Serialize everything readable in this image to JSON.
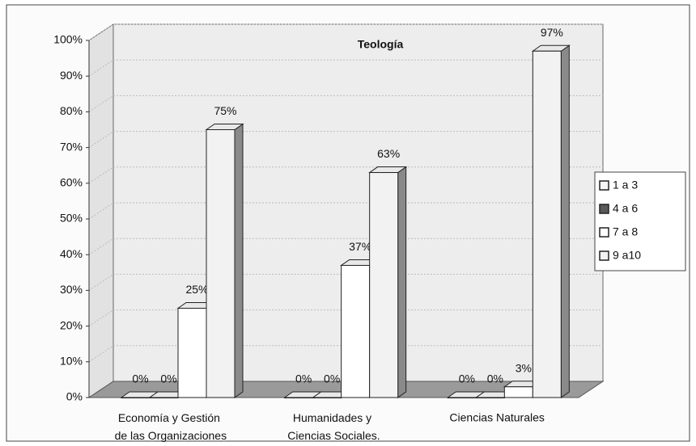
{
  "chart_data": {
    "type": "bar3d",
    "title": "Teología",
    "categories": [
      "Economía y Gestión de las Organizaciones",
      "Humanidades y Ciencias Sociales.",
      "Ciencias Naturales"
    ],
    "series": [
      {
        "name": "1 a 3",
        "color": "#f6f6f6",
        "values": [
          0,
          0,
          0
        ],
        "value_labels": [
          "0%",
          "0%",
          "0%"
        ]
      },
      {
        "name": "4 a 6",
        "color": "#5a5a5a",
        "values": [
          0,
          0,
          0
        ],
        "value_labels": [
          "0%",
          "0%",
          "0%"
        ]
      },
      {
        "name": "7 a 8",
        "color": "#ffffff",
        "values": [
          25,
          37,
          3
        ],
        "value_labels": [
          "25%",
          "37%",
          "3%"
        ]
      },
      {
        "name": "9 a10",
        "color": "#f2f2f2",
        "values": [
          75,
          63,
          97
        ],
        "value_labels": [
          "75%",
          "63%",
          "97%"
        ]
      }
    ],
    "ylim": [
      0,
      100
    ],
    "yticks": [
      {
        "value": 0,
        "label": "0%"
      },
      {
        "value": 10,
        "label": "10%"
      },
      {
        "value": 20,
        "label": "20%"
      },
      {
        "value": 30,
        "label": "30%"
      },
      {
        "value": 40,
        "label": "40%"
      },
      {
        "value": 50,
        "label": "50%"
      },
      {
        "value": 60,
        "label": "60%"
      },
      {
        "value": 70,
        "label": "70%"
      },
      {
        "value": 80,
        "label": "80%"
      },
      {
        "value": 90,
        "label": "90%"
      },
      {
        "value": 100,
        "label": "100%"
      }
    ],
    "grid": true,
    "legend": "right"
  }
}
